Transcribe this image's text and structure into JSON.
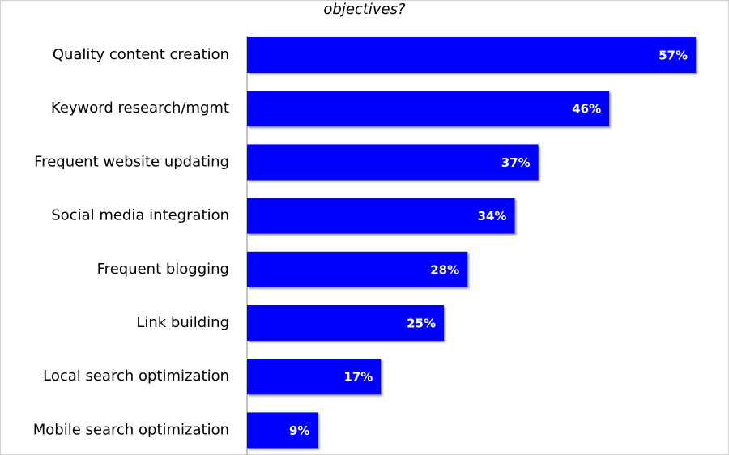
{
  "chart_data": {
    "type": "hbar",
    "title": "objectives?",
    "categories": [
      "Quality content creation",
      "Keyword research/mgmt",
      "Frequent website updating",
      "Social media integration",
      "Frequent blogging",
      "Link building",
      "Local search optimization",
      "Mobile search optimization"
    ],
    "values": [
      57,
      46,
      37,
      34,
      28,
      25,
      17,
      9
    ],
    "value_labels": [
      "57%",
      "46%",
      "37%",
      "34%",
      "28%",
      "25%",
      "17%",
      "9%"
    ],
    "color": "#0000ff"
  }
}
